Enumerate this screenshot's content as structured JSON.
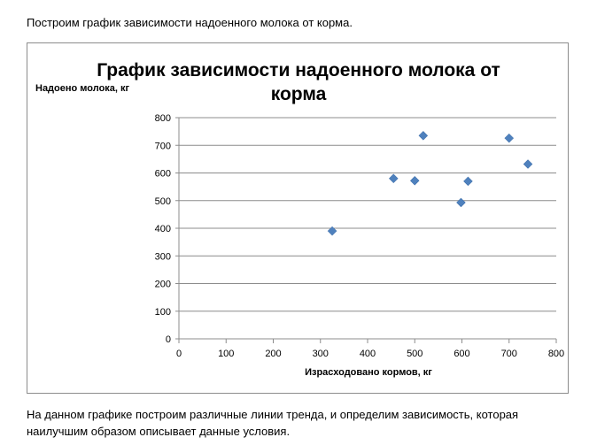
{
  "document": {
    "intro_text": "Построим график зависимости надоенного молока от корма.",
    "outro_text": "На данном графике построим различные линии тренда, и определим зависимость, которая наилучшим образом описывает данные условия."
  },
  "chart_data": {
    "type": "scatter",
    "title_line1": "График зависимости надоенного молока от",
    "title_line2": "корма",
    "xlabel": "Израсходовано кормов, кг",
    "ylabel": "Надоено молока, кг",
    "xlim": [
      0,
      800
    ],
    "ylim": [
      0,
      800
    ],
    "x_ticks": [
      0,
      100,
      200,
      300,
      400,
      500,
      600,
      700,
      800
    ],
    "y_ticks": [
      0,
      100,
      200,
      300,
      400,
      500,
      600,
      700,
      800
    ],
    "grid": "horizontal",
    "legend": "none",
    "marker": "diamond",
    "marker_color": "#4F81BD",
    "points": [
      {
        "x": 325,
        "y": 390
      },
      {
        "x": 455,
        "y": 580
      },
      {
        "x": 500,
        "y": 572
      },
      {
        "x": 518,
        "y": 735
      },
      {
        "x": 598,
        "y": 493
      },
      {
        "x": 613,
        "y": 570
      },
      {
        "x": 700,
        "y": 726
      },
      {
        "x": 740,
        "y": 632
      }
    ]
  }
}
